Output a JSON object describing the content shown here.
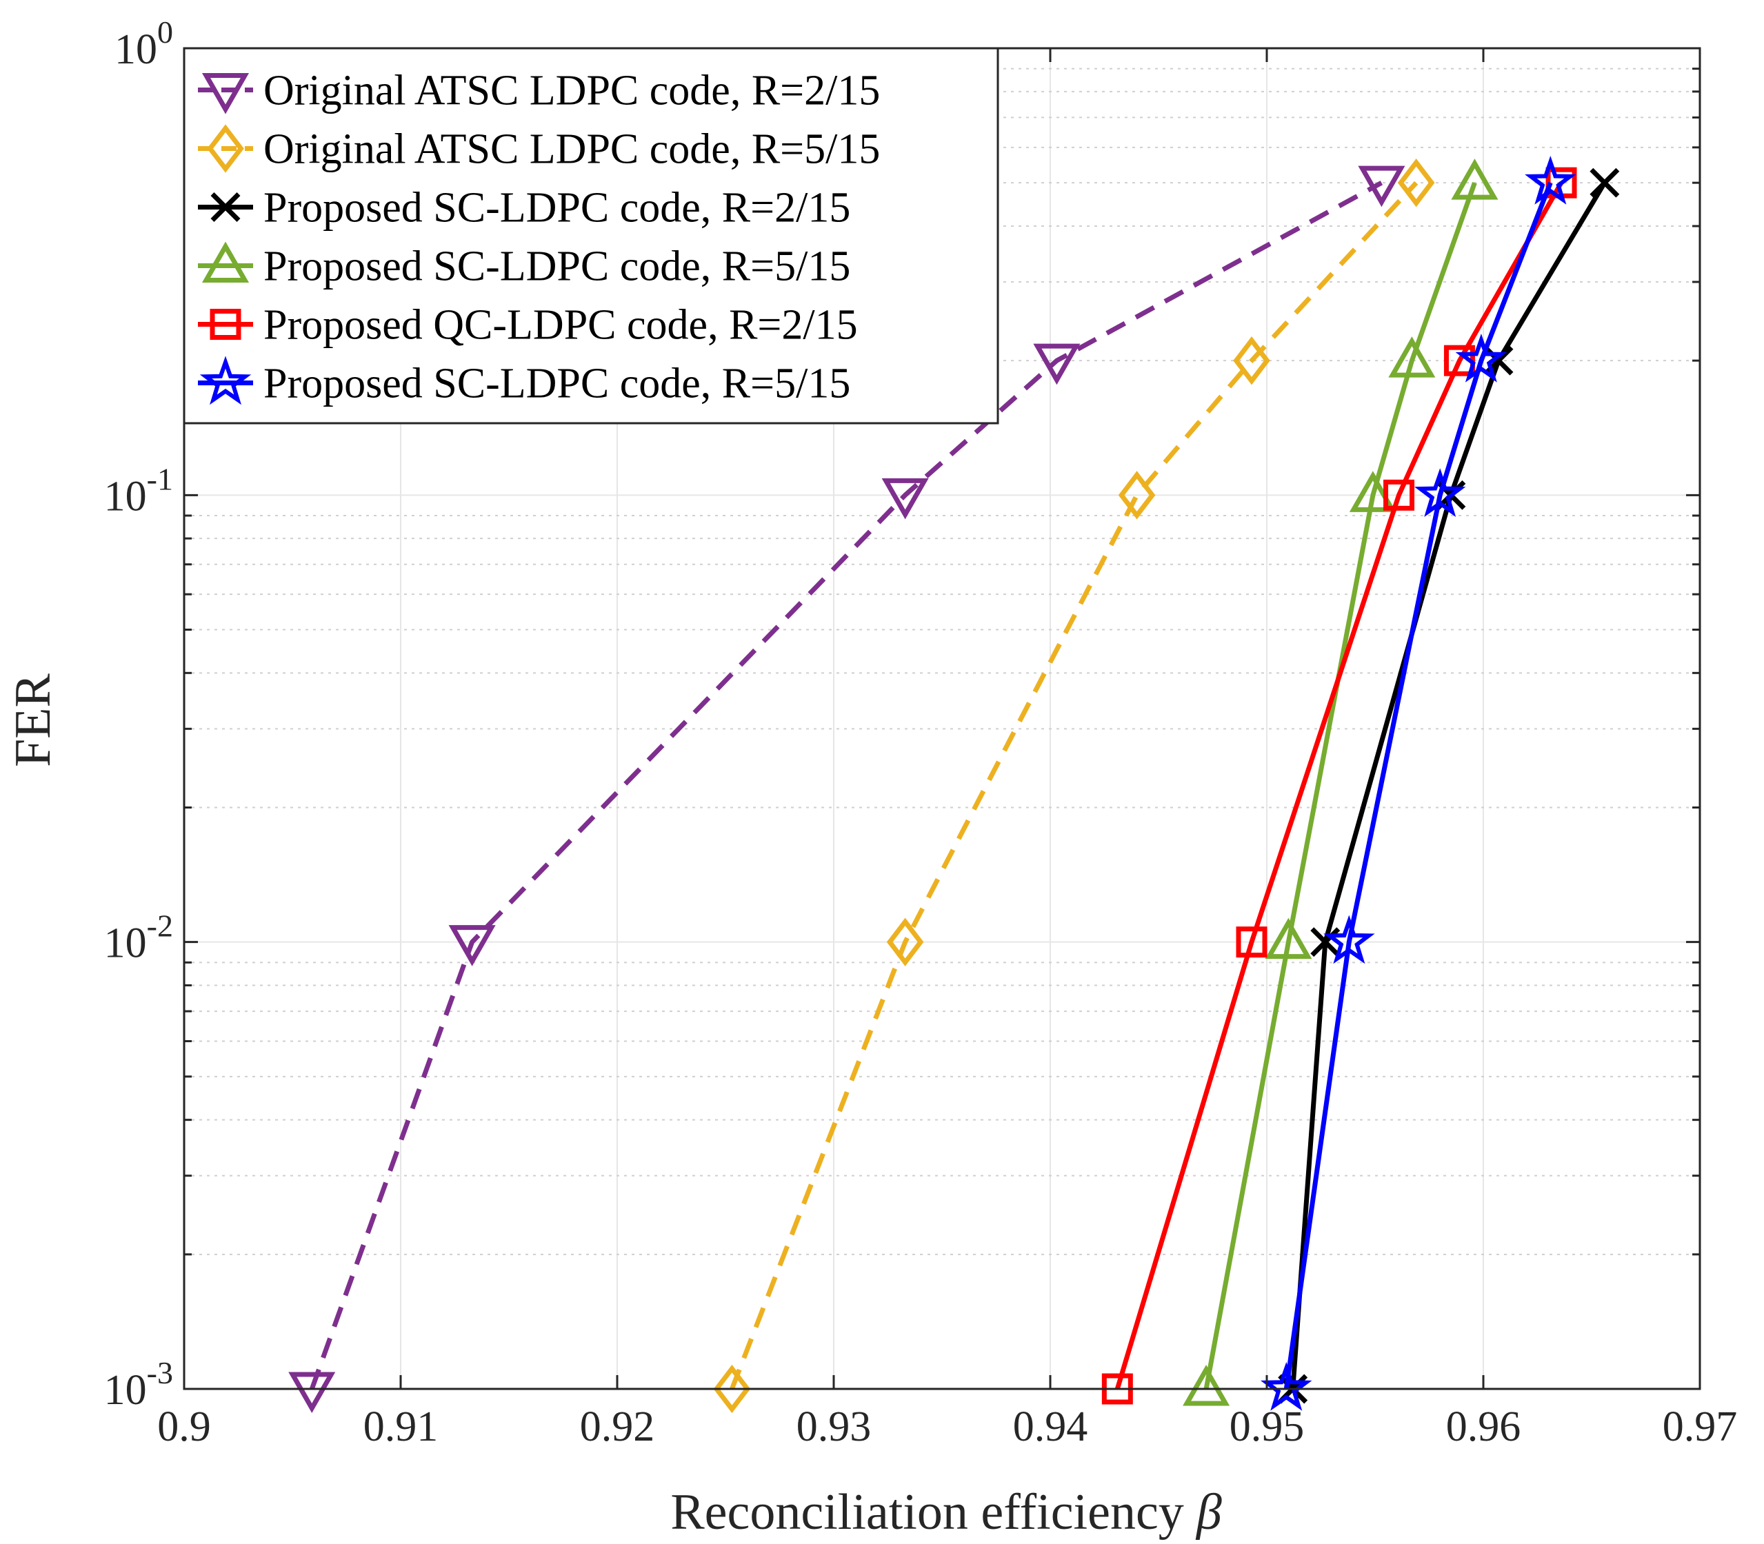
{
  "chart_data": {
    "type": "line",
    "title": "",
    "xlabel": "Reconciliation efficiency",
    "xlabel_symbol": "β",
    "ylabel": "FER",
    "xlim": [
      0.9,
      0.97
    ],
    "ylim": [
      0.001,
      1
    ],
    "yscale": "log",
    "grid": true,
    "legend_position": "top-left",
    "x_ticks": [
      0.9,
      0.91,
      0.92,
      0.93,
      0.94,
      0.95,
      0.96,
      0.97
    ],
    "x_tick_labels": [
      "0.9",
      "0.91",
      "0.92",
      "0.93",
      "0.94",
      "0.95",
      "0.96",
      "0.97"
    ],
    "y_ticks": [
      {
        "value": 0.001,
        "base": "10",
        "exp": "-3"
      },
      {
        "value": 0.01,
        "base": "10",
        "exp": "-2"
      },
      {
        "value": 0.1,
        "base": "10",
        "exp": "-1"
      },
      {
        "value": 1,
        "base": "10",
        "exp": "0"
      }
    ],
    "series": [
      {
        "name": "Original ATSC LDPC code, R=2/15",
        "color": "#7E2F8E",
        "dash": "dashed",
        "marker": "triangle-down",
        "x": [
          0.9059,
          0.9133,
          0.9333,
          0.9403,
          0.9553
        ],
        "y": [
          0.001,
          0.01,
          0.1,
          0.2,
          0.5
        ]
      },
      {
        "name": "Original ATSC LDPC code, R=5/15",
        "color": "#EDB120",
        "dash": "dashed",
        "marker": "diamond",
        "x": [
          0.9253,
          0.9333,
          0.944,
          0.9493,
          0.9569
        ],
        "y": [
          0.001,
          0.01,
          0.1,
          0.2,
          0.5
        ]
      },
      {
        "name": "Proposed SC-LDPC code, R=2/15",
        "color": "#000000",
        "dash": "solid",
        "marker": "x",
        "x": [
          0.9512,
          0.9527,
          0.9585,
          0.9607,
          0.9656
        ],
        "y": [
          0.001,
          0.01,
          0.1,
          0.2,
          0.5
        ]
      },
      {
        "name": "Proposed SC-LDPC code, R=5/15",
        "color": "#77AC30",
        "dash": "solid",
        "marker": "triangle-up",
        "x": [
          0.9472,
          0.951,
          0.9549,
          0.9567,
          0.9596
        ],
        "y": [
          0.001,
          0.01,
          0.1,
          0.2,
          0.5
        ]
      },
      {
        "name": "Proposed QC-LDPC code, R=2/15",
        "color": "#FF0000",
        "dash": "solid",
        "marker": "square",
        "x": [
          0.9431,
          0.9493,
          0.9561,
          0.9589,
          0.9636
        ],
        "y": [
          0.001,
          0.01,
          0.1,
          0.2,
          0.5
        ]
      },
      {
        "name": "Proposed SC-LDPC code, R=5/15",
        "color": "#0000FF",
        "dash": "solid",
        "marker": "star",
        "x": [
          0.9509,
          0.9538,
          0.958,
          0.9599,
          0.9631
        ],
        "y": [
          0.001,
          0.01,
          0.1,
          0.2,
          0.5
        ]
      }
    ]
  }
}
